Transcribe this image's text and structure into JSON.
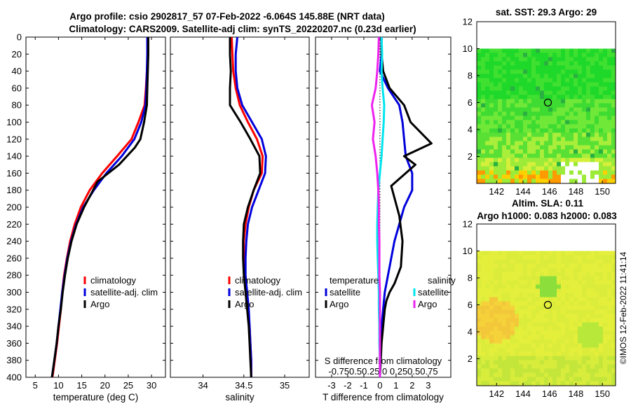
{
  "titles": {
    "line1": "Argo profile: csio 2902817_57 07-Feb-2022 -6.064S 145.88E (NRT data)",
    "line2": "Climatology: CARS2009. Satellite-adj clim: synTS_20220207.nc (0.23d earlier)"
  },
  "watermark": "©IMOS 12-Feb-2022 11:41:14",
  "colors": {
    "climatology": "#ff0000",
    "satellite": "#0000dd",
    "argo": "#000000",
    "sat_salinity": "#00e5ee",
    "argo_salinity": "#ee22ee"
  },
  "depth_axis": {
    "range": [
      0,
      400
    ],
    "ticks": [
      0,
      20,
      40,
      60,
      80,
      100,
      120,
      140,
      160,
      180,
      200,
      220,
      240,
      260,
      280,
      300,
      320,
      340,
      360,
      380,
      400
    ]
  },
  "chart_data": [
    {
      "type": "line",
      "name": "temperature-profile",
      "xlabel": "temperature (deg C)",
      "xlim": [
        3,
        33
      ],
      "xticks": [
        5,
        10,
        15,
        20,
        25,
        30
      ],
      "ylim": [
        400,
        0
      ],
      "legend": [
        "climatology",
        "satellite-adj. clim",
        "Argo"
      ],
      "series": [
        {
          "name": "climatology",
          "key": "climatology",
          "x": [
            29.2,
            29.2,
            29.0,
            28.8,
            28.5,
            27.2,
            25.7,
            22.6,
            19.4,
            16.7,
            14.8,
            13.5,
            12.5,
            11.8,
            11.2,
            10.8,
            10.5,
            10.1,
            9.7,
            9.2,
            8.7
          ],
          "depth": [
            0,
            20,
            40,
            60,
            80,
            100,
            120,
            140,
            160,
            180,
            200,
            220,
            240,
            260,
            280,
            300,
            320,
            340,
            360,
            380,
            400
          ]
        },
        {
          "name": "satellite-adj. clim",
          "key": "satellite",
          "x": [
            29.1,
            29.1,
            29.0,
            28.9,
            28.7,
            27.8,
            26.3,
            23.6,
            20.3,
            17.6,
            15.3,
            13.8,
            12.7,
            11.9,
            11.3,
            10.8,
            10.4,
            10.0,
            9.6,
            9.1,
            8.6
          ],
          "depth": [
            0,
            20,
            40,
            60,
            80,
            100,
            120,
            140,
            160,
            180,
            200,
            220,
            240,
            260,
            280,
            300,
            320,
            340,
            360,
            380,
            400
          ]
        },
        {
          "name": "Argo",
          "key": "argo",
          "x": [
            29.3,
            29.3,
            29.2,
            29.1,
            29.0,
            28.4,
            27.6,
            26.4,
            23.0,
            18.4,
            15.5,
            13.9,
            12.8,
            12.0,
            11.4,
            10.9,
            10.5,
            10.0,
            9.6,
            9.1,
            8.6
          ],
          "depth": [
            0,
            20,
            40,
            60,
            80,
            100,
            120,
            130,
            150,
            170,
            200,
            220,
            240,
            260,
            280,
            300,
            320,
            340,
            360,
            380,
            400
          ]
        }
      ]
    },
    {
      "type": "line",
      "name": "salinity-profile",
      "xlabel": "salinity",
      "xlim": [
        33.6,
        35.3
      ],
      "xticks": [
        34,
        34.5,
        35
      ],
      "ylim": [
        400,
        0
      ],
      "legend": [
        "climatology",
        "satellite-adj. clim",
        "Argo"
      ],
      "series": [
        {
          "name": "climatology",
          "key": "climatology",
          "x": [
            34.35,
            34.36,
            34.37,
            34.4,
            34.45,
            34.55,
            34.66,
            34.73,
            34.72,
            34.62,
            34.56,
            34.52,
            34.5,
            34.5,
            34.51,
            34.53,
            34.55,
            34.57,
            34.58,
            34.59,
            34.59
          ],
          "depth": [
            0,
            20,
            40,
            60,
            80,
            100,
            120,
            140,
            160,
            180,
            200,
            220,
            240,
            260,
            280,
            300,
            320,
            340,
            360,
            380,
            400
          ]
        },
        {
          "name": "satellite-adj. clim",
          "key": "satellite",
          "x": [
            34.42,
            34.4,
            34.4,
            34.42,
            34.48,
            34.6,
            34.72,
            34.77,
            34.76,
            34.68,
            34.6,
            34.55,
            34.53,
            34.52,
            34.52,
            34.54,
            34.56,
            34.57,
            34.58,
            34.59,
            34.59
          ],
          "depth": [
            0,
            20,
            40,
            60,
            80,
            100,
            120,
            140,
            160,
            180,
            200,
            220,
            240,
            260,
            280,
            300,
            320,
            340,
            360,
            380,
            400
          ]
        },
        {
          "name": "Argo",
          "key": "argo",
          "x": [
            34.33,
            34.33,
            34.34,
            34.33,
            34.33,
            34.46,
            34.58,
            34.69,
            34.7,
            34.62,
            34.55,
            34.5,
            34.49,
            34.49,
            34.5,
            34.52,
            34.54,
            34.56,
            34.57,
            34.58,
            34.59
          ],
          "depth": [
            0,
            20,
            40,
            60,
            80,
            100,
            120,
            140,
            160,
            180,
            200,
            220,
            240,
            260,
            280,
            300,
            320,
            340,
            360,
            380,
            400
          ]
        }
      ]
    },
    {
      "type": "line",
      "name": "difference-from-climatology",
      "xlabel": "T difference from climatology",
      "xlim": [
        -4,
        4.4
      ],
      "xticks": [
        -3,
        -2,
        -1,
        0,
        1,
        2,
        3
      ],
      "ylim": [
        400,
        0
      ],
      "top_label": "S difference from climatology",
      "top_ticks_text": "-0.750.50.25  0  0.250.50.75",
      "legend_temperature": {
        "title": "temperature",
        "items": [
          "satellite",
          "Argo"
        ]
      },
      "legend_salinity": {
        "title": "salinity",
        "items": [
          "satellite",
          "Argo"
        ]
      },
      "series": [
        {
          "name": "temperature satellite",
          "key": "satellite",
          "x": [
            0.1,
            0.1,
            0.0,
            0.5,
            1.2,
            1.4,
            1.5,
            1.6,
            2.0,
            2.0,
            1.5,
            1.2,
            0.9,
            0.7,
            0.5,
            0.3,
            0.2,
            0.1,
            0.05,
            0.0,
            0.0
          ],
          "depth": [
            0,
            20,
            40,
            60,
            80,
            100,
            120,
            140,
            160,
            180,
            200,
            220,
            240,
            260,
            280,
            300,
            320,
            340,
            360,
            380,
            400
          ]
        },
        {
          "name": "temperature Argo",
          "key": "argo",
          "x": [
            0.1,
            0.1,
            0.2,
            0.6,
            1.5,
            1.9,
            3.2,
            1.5,
            2.2,
            0.7,
            1.2,
            1.4,
            1.3,
            0.9,
            0.6,
            0.4,
            0.3,
            0.2,
            0.1,
            0.05,
            0.0
          ],
          "depth": [
            0,
            20,
            40,
            60,
            80,
            100,
            125,
            140,
            150,
            175,
            210,
            240,
            270,
            290,
            300,
            310,
            320,
            340,
            360,
            380,
            400
          ]
        },
        {
          "name": "salinity satellite",
          "key": "sat_salinity",
          "x": [
            0.03,
            0.04,
            0.03,
            0.05,
            0.08,
            0.07,
            0.05,
            0.03,
            0.0,
            -0.03,
            -0.04,
            -0.05,
            -0.05,
            -0.04,
            -0.03,
            -0.02,
            -0.02,
            -0.01,
            -0.01,
            0.0,
            0.0
          ],
          "depth": [
            0,
            20,
            40,
            60,
            80,
            100,
            120,
            140,
            160,
            180,
            200,
            220,
            240,
            260,
            280,
            300,
            320,
            340,
            360,
            380,
            400
          ],
          "unit": "salinity"
        },
        {
          "name": "salinity Argo",
          "key": "argo_salinity",
          "x": [
            -0.02,
            -0.03,
            -0.05,
            -0.08,
            -0.15,
            -0.1,
            -0.13,
            -0.08,
            -0.05,
            -0.03,
            -0.02,
            -0.02,
            -0.01,
            -0.01,
            -0.01,
            0.0,
            0.0,
            0.0,
            0.0,
            0.0,
            0.0
          ],
          "depth": [
            0,
            20,
            40,
            60,
            80,
            100,
            120,
            140,
            160,
            180,
            200,
            220,
            240,
            260,
            280,
            300,
            320,
            340,
            360,
            380,
            400
          ],
          "unit": "salinity"
        }
      ]
    },
    {
      "type": "heatmap",
      "name": "sst-map",
      "title": "sat. SST: 29.3 Argo: 29",
      "xlim": [
        140.5,
        151
      ],
      "ylim": [
        0,
        12
      ],
      "xticks": [
        142,
        144,
        146,
        148,
        150
      ],
      "yticks": [
        2,
        4,
        6,
        8,
        10,
        12
      ],
      "data_top": 10,
      "marker": {
        "lon": 145.88,
        "lat": 6
      }
    },
    {
      "type": "heatmap",
      "name": "sla-map",
      "title_line1": "Altim. SLA: 0.11",
      "title_line2": "Argo h1000: 0.083 h2000: 0.083",
      "xlim": [
        140.5,
        151
      ],
      "ylim": [
        0,
        12
      ],
      "xticks": [
        142,
        144,
        146,
        148,
        150
      ],
      "yticks": [
        2,
        4,
        6,
        8,
        10,
        12
      ],
      "data_top": 10,
      "marker": {
        "lon": 145.88,
        "lat": 6
      }
    }
  ]
}
